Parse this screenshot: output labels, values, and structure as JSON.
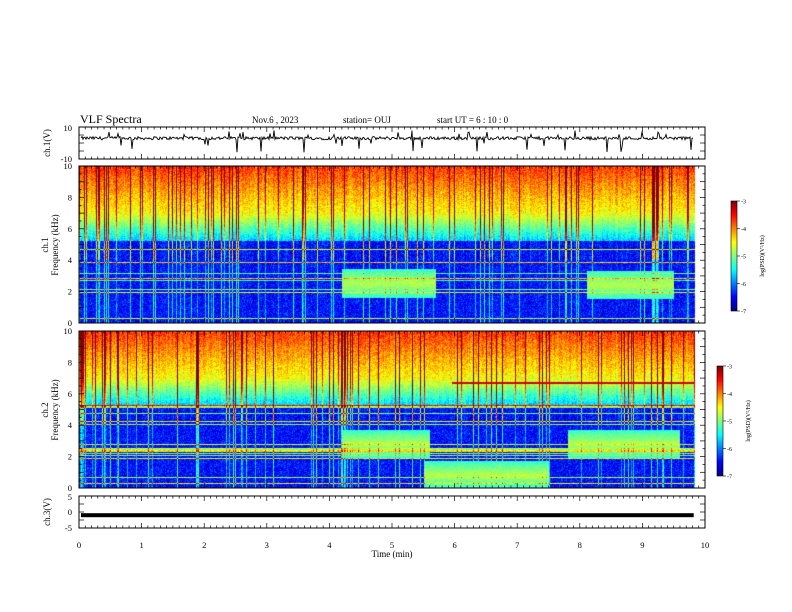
{
  "header": {
    "title": "VLF Spectra",
    "date": "Nov.6 , 2023",
    "station": "station= OUJ",
    "start": "start UT = 6 : 10 : 0"
  },
  "chart_data": {
    "type": "heatmap",
    "title": "VLF Spectra",
    "x_axis": {
      "label": "Time (min)",
      "range": [
        0,
        10
      ],
      "ticks": [
        "0",
        "1",
        "2",
        "3",
        "4",
        "5",
        "6",
        "7",
        "8",
        "9",
        "10"
      ]
    },
    "panels": [
      {
        "id": "ch1_waveform",
        "type": "line",
        "ylabel": "ch.1(V)",
        "ylim": [
          -10,
          10
        ],
        "yticks": [
          "10",
          "-10"
        ],
        "data_end_min": 9.82,
        "baseline_v": 3,
        "noise_amplitude_v": 1
      },
      {
        "id": "ch1_spectrogram",
        "type": "heatmap",
        "ylabel_channel": "ch.1",
        "ylabel": "Frequency (kHz)",
        "ylim": [
          0,
          10
        ],
        "yticks": [
          "0",
          "2",
          "4",
          "6",
          "8",
          "10"
        ],
        "colorbar": {
          "label": "log(PSD)(V²/Hz)",
          "range": [
            -7,
            -3
          ],
          "ticks": [
            "-3",
            "-4",
            "-5",
            "-6",
            "-7"
          ]
        },
        "features": [
          {
            "kind": "emission_band",
            "t_min": 4.2,
            "t_max": 5.7,
            "f_center_khz": 2.5
          },
          {
            "kind": "emission_band",
            "t_min": 8.1,
            "t_max": 9.5,
            "f_center_khz": 2.4
          }
        ]
      },
      {
        "id": "ch2_spectrogram",
        "type": "heatmap",
        "ylabel_channel": "ch.2",
        "ylabel": "Frequency (kHz)",
        "ylim": [
          0,
          10
        ],
        "yticks": [
          "0",
          "2",
          "4",
          "6",
          "8",
          "10"
        ],
        "colorbar": {
          "label": "log(PSD)(V²/Hz)",
          "range": [
            -7,
            -3
          ],
          "ticks": [
            "-3",
            "-4",
            "-5",
            "-6",
            "-7"
          ]
        },
        "features": [
          {
            "kind": "emission_band",
            "t_min": 4.2,
            "t_max": 5.6,
            "f_center_khz": 2.8
          },
          {
            "kind": "emission_band",
            "t_min": 7.8,
            "t_max": 9.6,
            "f_center_khz": 2.8
          },
          {
            "kind": "emission_band",
            "t_min": 5.5,
            "t_max": 7.5,
            "f_center_khz": 0.8
          },
          {
            "kind": "step_line",
            "t_min": 5.95,
            "t_max": 9.82,
            "f_khz": 6.7
          }
        ]
      },
      {
        "id": "ch3_waveform",
        "type": "line",
        "ylabel": "ch.3(V)",
        "ylim": [
          -5,
          5
        ],
        "yticks": [
          "5",
          "0",
          "-5"
        ],
        "data_end_min": 9.82,
        "baseline_v": -1
      }
    ]
  }
}
